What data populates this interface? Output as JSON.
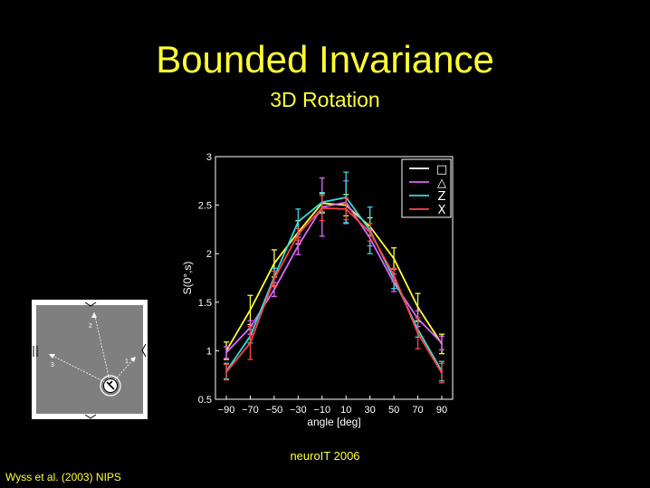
{
  "slide": {
    "title": "Bounded Invariance",
    "subtitle": "3D Rotation",
    "footer": "neuroIT 2006",
    "citation": "Wyss et al. (2003) NIPS"
  },
  "arena": {
    "labels": [
      "1",
      "2",
      "3"
    ],
    "colors": {
      "border": "#ffffff",
      "floor": "#7f7f7f"
    }
  },
  "chart_data": {
    "type": "line",
    "xlabel": "angle [deg]",
    "ylabel": "S(0°,s)",
    "x": [
      -90,
      -70,
      -50,
      -30,
      -10,
      10,
      30,
      50,
      70,
      90
    ],
    "xtick_labels": [
      "−90",
      "−70",
      "−50",
      "−30",
      "−10",
      "10",
      "30",
      "50",
      "70",
      "90"
    ],
    "ylim": [
      0.5,
      3
    ],
    "yticks": [
      0.5,
      1,
      1.5,
      2,
      2.5,
      3
    ],
    "ytick_labels": [
      "0.5",
      "1",
      "1.5",
      "2",
      "2.5",
      "3"
    ],
    "legend_position": "top-right",
    "grid": false,
    "series": [
      {
        "name": "□",
        "color": "#ffff33",
        "values": [
          1.0,
          1.42,
          1.9,
          2.22,
          2.52,
          2.5,
          2.28,
          1.95,
          1.45,
          1.07
        ],
        "errors": [
          0.09,
          0.15,
          0.14,
          0.12,
          0.1,
          0.11,
          0.09,
          0.11,
          0.14,
          0.1
        ]
      },
      {
        "name": "△",
        "color": "#dd66ff",
        "values": [
          0.98,
          1.24,
          1.63,
          2.08,
          2.48,
          2.53,
          2.16,
          1.7,
          1.33,
          1.08
        ],
        "errors": [
          0.06,
          0.07,
          0.07,
          0.09,
          0.3,
          0.22,
          0.08,
          0.09,
          0.08,
          0.07
        ]
      },
      {
        "name": "Z",
        "color": "#33dddd",
        "values": [
          0.79,
          1.15,
          1.76,
          2.33,
          2.53,
          2.58,
          2.24,
          1.74,
          1.22,
          0.79
        ],
        "errors": [
          0.08,
          0.07,
          0.09,
          0.13,
          0.1,
          0.26,
          0.24,
          0.1,
          0.08,
          0.1
        ]
      },
      {
        "name": "X",
        "color": "#ff4444",
        "values": [
          0.78,
          1.08,
          1.74,
          2.2,
          2.47,
          2.46,
          2.22,
          1.78,
          1.18,
          0.77
        ],
        "errors": [
          0.08,
          0.17,
          0.08,
          0.06,
          0.13,
          0.11,
          0.09,
          0.07,
          0.16,
          0.1
        ]
      }
    ]
  }
}
